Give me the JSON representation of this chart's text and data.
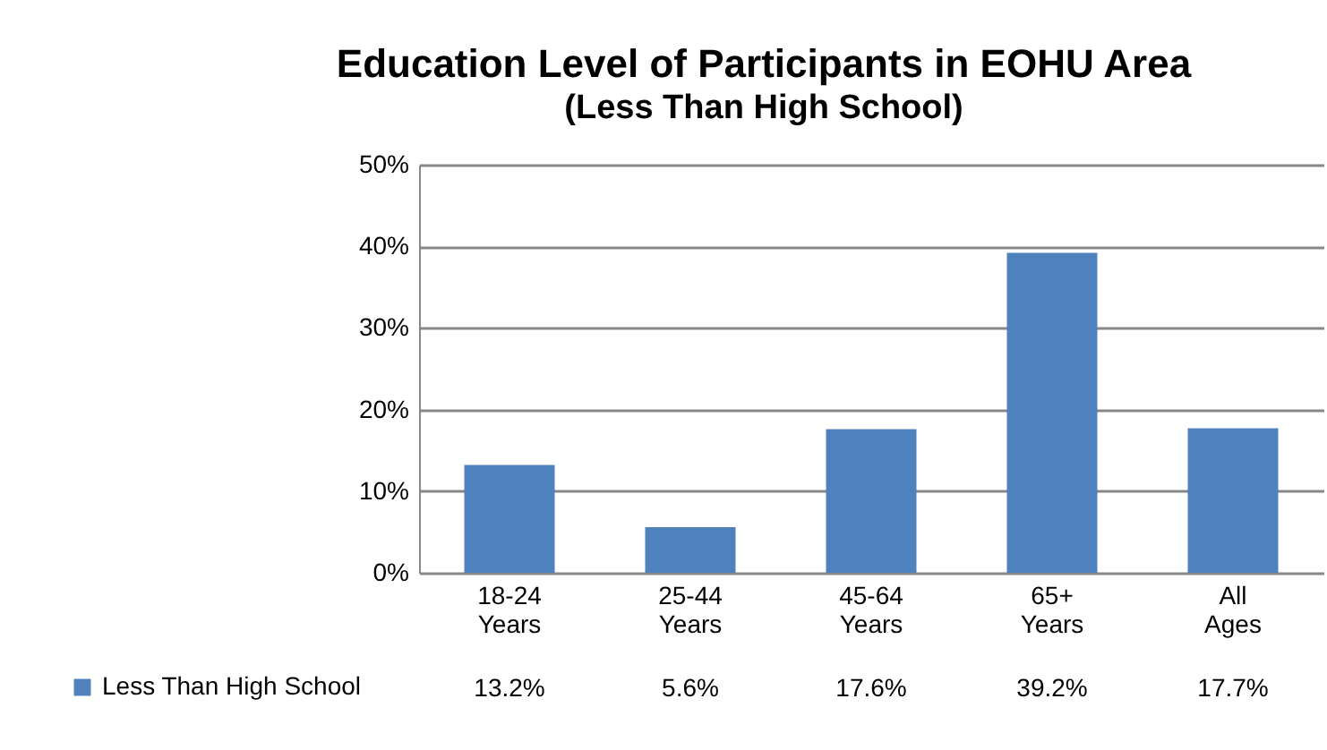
{
  "chart_data": {
    "type": "bar",
    "title": "Education Level of Participants in EOHU Area",
    "subtitle": "(Less Than High School)",
    "categories": [
      "18-24 Years",
      "25-44 Years",
      "45-64 Years",
      "65+ Years",
      "All Ages"
    ],
    "series": [
      {
        "name": "Less Than High School",
        "color": "#4f81bd",
        "values": [
          13.2,
          5.6,
          17.6,
          39.2,
          17.7
        ]
      }
    ],
    "value_labels": [
      "13.2%",
      "5.6%",
      "17.6%",
      "39.2%",
      "17.7%"
    ],
    "ylim": [
      0,
      50
    ],
    "yticks": [
      {
        "value": 0,
        "label": "0%"
      },
      {
        "value": 10,
        "label": "10%"
      },
      {
        "value": 20,
        "label": "20%"
      },
      {
        "value": 30,
        "label": "30%"
      },
      {
        "value": 40,
        "label": "40%"
      },
      {
        "value": 50,
        "label": "50%"
      }
    ],
    "grid": "y",
    "legend": "bottom left"
  }
}
